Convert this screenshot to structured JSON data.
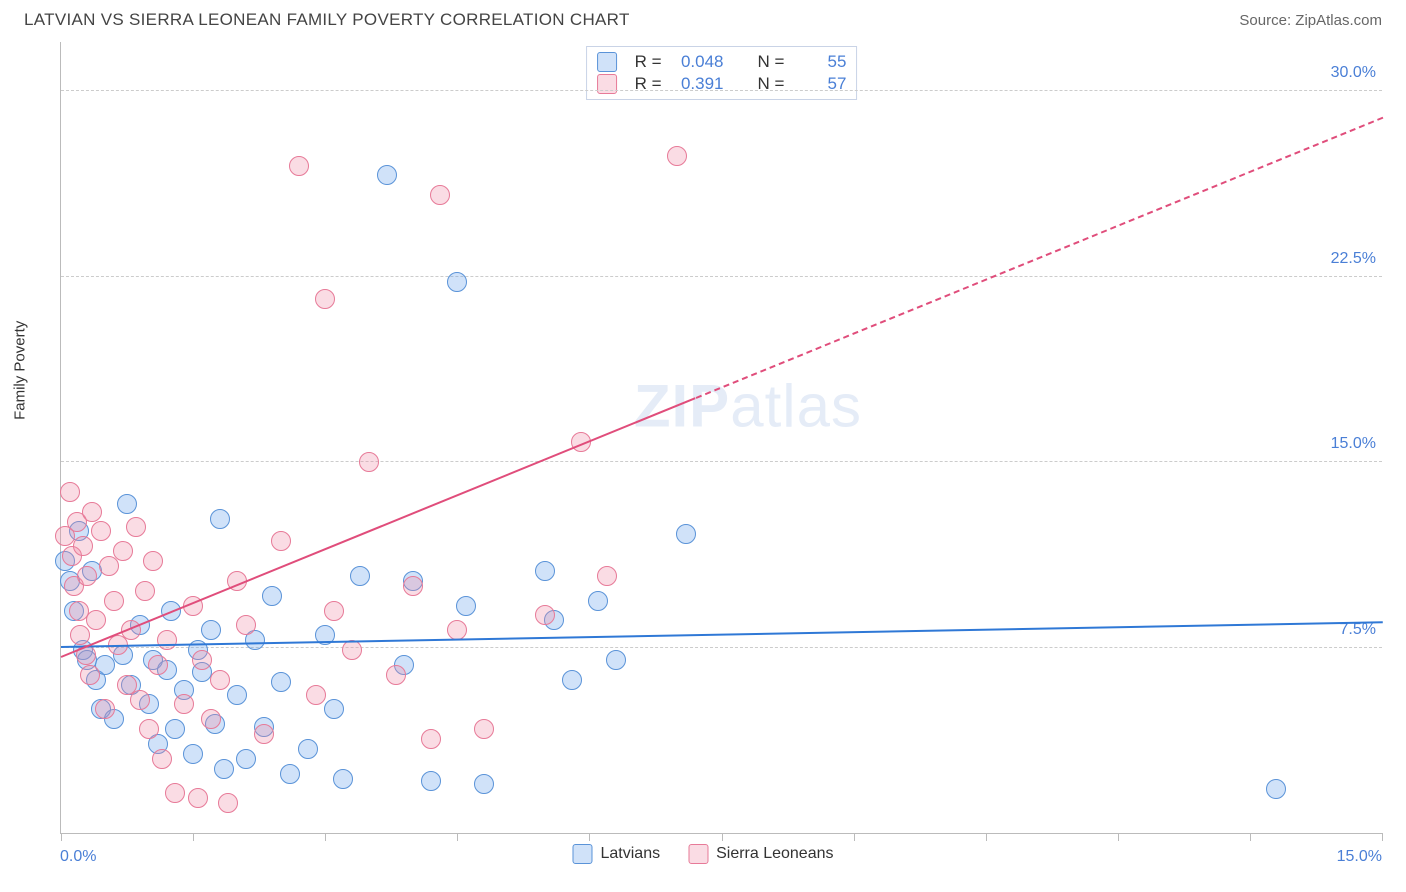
{
  "header": {
    "title": "LATVIAN VS SIERRA LEONEAN FAMILY POVERTY CORRELATION CHART",
    "source_prefix": "Source: ",
    "source_name": "ZipAtlas.com"
  },
  "chart": {
    "type": "scatter",
    "ylabel": "Family Poverty",
    "xlim": [
      0,
      15
    ],
    "ylim": [
      0,
      32
    ],
    "xtick_positions": [
      0,
      1.5,
      3,
      4.5,
      6,
      7.5,
      9,
      10.5,
      12,
      13.5,
      15
    ],
    "xaxis_start_label": "0.0%",
    "xaxis_end_label": "15.0%",
    "ygrid": [
      {
        "v": 7.5,
        "label": "7.5%"
      },
      {
        "v": 15.0,
        "label": "15.0%"
      },
      {
        "v": 22.5,
        "label": "22.5%"
      },
      {
        "v": 30.0,
        "label": "30.0%"
      }
    ],
    "background_color": "#ffffff",
    "grid_color": "#cccccc",
    "axis_color": "#bbbbbb",
    "tick_label_color": "#4a7fd6",
    "marker_radius": 10,
    "marker_stroke_width": 1.5,
    "watermark": "ZIPatlas"
  },
  "series": [
    {
      "name": "Latvians",
      "legend_label": "Latvians",
      "fill": "rgba(100,160,235,0.30)",
      "stroke": "#5a93d8",
      "trend_color": "#2f78d6",
      "trend": {
        "x0": 0,
        "y0": 7.6,
        "x1": 15,
        "y1": 8.6,
        "solid_until_x": 15
      },
      "stats": {
        "R": "0.048",
        "N": "55"
      },
      "points": [
        [
          0.05,
          11.0
        ],
        [
          0.1,
          10.2
        ],
        [
          0.15,
          9.0
        ],
        [
          0.2,
          12.2
        ],
        [
          0.25,
          7.4
        ],
        [
          0.3,
          7.0
        ],
        [
          0.35,
          10.6
        ],
        [
          0.4,
          6.2
        ],
        [
          0.45,
          5.0
        ],
        [
          0.5,
          6.8
        ],
        [
          0.6,
          4.6
        ],
        [
          0.7,
          7.2
        ],
        [
          0.75,
          13.3
        ],
        [
          0.8,
          6.0
        ],
        [
          0.9,
          8.4
        ],
        [
          1.0,
          5.2
        ],
        [
          1.05,
          7.0
        ],
        [
          1.1,
          3.6
        ],
        [
          1.2,
          6.6
        ],
        [
          1.25,
          9.0
        ],
        [
          1.3,
          4.2
        ],
        [
          1.4,
          5.8
        ],
        [
          1.5,
          3.2
        ],
        [
          1.55,
          7.4
        ],
        [
          1.6,
          6.5
        ],
        [
          1.7,
          8.2
        ],
        [
          1.75,
          4.4
        ],
        [
          1.8,
          12.7
        ],
        [
          1.85,
          2.6
        ],
        [
          2.0,
          5.6
        ],
        [
          2.1,
          3.0
        ],
        [
          2.2,
          7.8
        ],
        [
          2.3,
          4.3
        ],
        [
          2.4,
          9.6
        ],
        [
          2.5,
          6.1
        ],
        [
          2.6,
          2.4
        ],
        [
          2.8,
          3.4
        ],
        [
          3.0,
          8.0
        ],
        [
          3.1,
          5.0
        ],
        [
          3.2,
          2.2
        ],
        [
          3.4,
          10.4
        ],
        [
          3.7,
          26.6
        ],
        [
          3.9,
          6.8
        ],
        [
          4.0,
          10.2
        ],
        [
          4.2,
          2.1
        ],
        [
          4.5,
          22.3
        ],
        [
          4.6,
          9.2
        ],
        [
          4.8,
          2.0
        ],
        [
          5.5,
          10.6
        ],
        [
          5.6,
          8.6
        ],
        [
          5.8,
          6.2
        ],
        [
          6.1,
          9.4
        ],
        [
          6.3,
          7.0
        ],
        [
          7.1,
          12.1
        ],
        [
          13.8,
          1.8
        ]
      ]
    },
    {
      "name": "Sierra Leoneans",
      "legend_label": "Sierra Leoneans",
      "fill": "rgba(240,140,165,0.30)",
      "stroke": "#e77a98",
      "trend_color": "#e04d7b",
      "trend": {
        "x0": 0,
        "y0": 7.2,
        "x1": 15,
        "y1": 29.0,
        "solid_until_x": 7.2
      },
      "stats": {
        "R": "0.391",
        "N": "57"
      },
      "points": [
        [
          0.05,
          12.0
        ],
        [
          0.1,
          13.8
        ],
        [
          0.12,
          11.2
        ],
        [
          0.15,
          10.0
        ],
        [
          0.18,
          12.6
        ],
        [
          0.2,
          9.0
        ],
        [
          0.22,
          8.0
        ],
        [
          0.25,
          11.6
        ],
        [
          0.28,
          7.2
        ],
        [
          0.3,
          10.4
        ],
        [
          0.33,
          6.4
        ],
        [
          0.35,
          13.0
        ],
        [
          0.4,
          8.6
        ],
        [
          0.45,
          12.2
        ],
        [
          0.5,
          5.0
        ],
        [
          0.55,
          10.8
        ],
        [
          0.6,
          9.4
        ],
        [
          0.65,
          7.6
        ],
        [
          0.7,
          11.4
        ],
        [
          0.75,
          6.0
        ],
        [
          0.8,
          8.2
        ],
        [
          0.85,
          12.4
        ],
        [
          0.9,
          5.4
        ],
        [
          0.95,
          9.8
        ],
        [
          1.0,
          4.2
        ],
        [
          1.05,
          11.0
        ],
        [
          1.1,
          6.8
        ],
        [
          1.15,
          3.0
        ],
        [
          1.2,
          7.8
        ],
        [
          1.3,
          1.6
        ],
        [
          1.4,
          5.2
        ],
        [
          1.5,
          9.2
        ],
        [
          1.55,
          1.4
        ],
        [
          1.6,
          7.0
        ],
        [
          1.7,
          4.6
        ],
        [
          1.8,
          6.2
        ],
        [
          1.9,
          1.2
        ],
        [
          2.0,
          10.2
        ],
        [
          2.1,
          8.4
        ],
        [
          2.3,
          4.0
        ],
        [
          2.5,
          11.8
        ],
        [
          2.7,
          27.0
        ],
        [
          2.9,
          5.6
        ],
        [
          3.0,
          21.6
        ],
        [
          3.1,
          9.0
        ],
        [
          3.3,
          7.4
        ],
        [
          3.5,
          15.0
        ],
        [
          3.8,
          6.4
        ],
        [
          4.0,
          10.0
        ],
        [
          4.3,
          25.8
        ],
        [
          4.5,
          8.2
        ],
        [
          4.8,
          4.2
        ],
        [
          5.5,
          8.8
        ],
        [
          5.9,
          15.8
        ],
        [
          6.2,
          10.4
        ],
        [
          7.0,
          27.4
        ],
        [
          4.2,
          3.8
        ]
      ]
    }
  ],
  "legend": {
    "swatch_size": 20,
    "text_color": "#333333"
  },
  "stats_box": {
    "R_label": "R =",
    "N_label": "N ="
  }
}
